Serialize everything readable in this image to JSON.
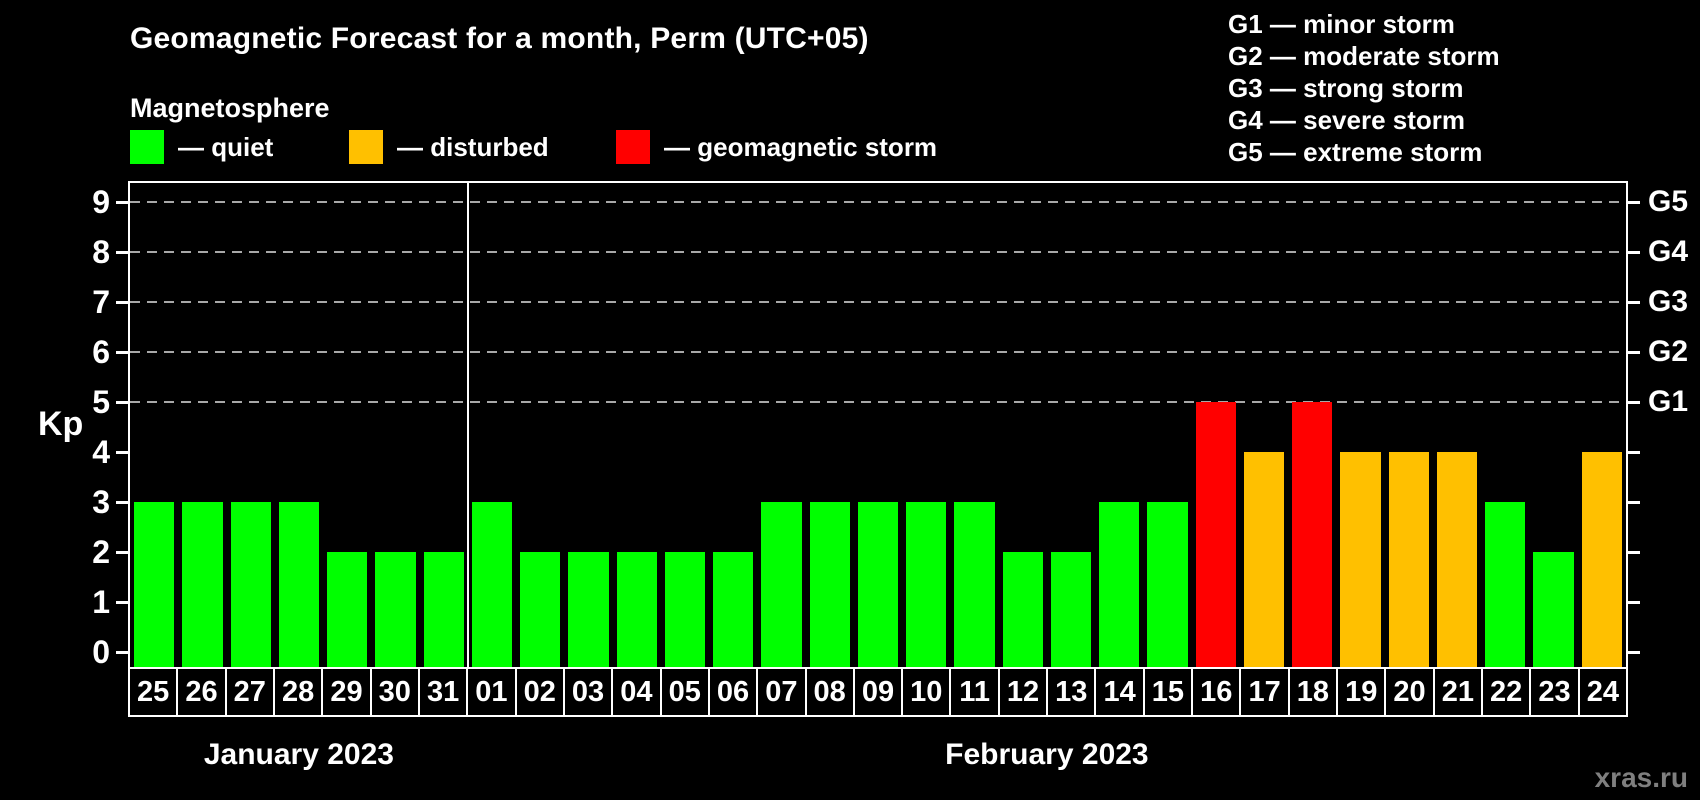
{
  "title": "Geomagnetic Forecast for a month, Perm (UTC+05)",
  "subtitle": "Magnetosphere",
  "legend": {
    "items": [
      {
        "name": "quiet",
        "label": "— quiet",
        "color": "#00ff00",
        "x": 130
      },
      {
        "name": "disturbed",
        "label": "— disturbed",
        "color": "#ffc000",
        "x": 349
      },
      {
        "name": "storm",
        "label": "— geomagnetic storm",
        "color": "#ff0000",
        "x": 616
      }
    ]
  },
  "g_scale_legend": [
    "G1 — minor storm",
    "G2 — moderate storm",
    "G3 — strong storm",
    "G4 — severe storm",
    "G5 — extreme storm"
  ],
  "watermark": "xras.ru",
  "chart_data": {
    "type": "bar",
    "title": "Geomagnetic Forecast for a month, Perm (UTC+05)",
    "ylabel": "Kp",
    "ylim": [
      0,
      9
    ],
    "yticks": [
      0,
      1,
      2,
      3,
      4,
      5,
      6,
      7,
      8,
      9
    ],
    "grid_kp_levels": [
      5,
      6,
      7,
      8,
      9
    ],
    "right_axis_labels": [
      {
        "label": "G1",
        "kp": 5
      },
      {
        "label": "G2",
        "kp": 6
      },
      {
        "label": "G3",
        "kp": 7
      },
      {
        "label": "G4",
        "kp": 8
      },
      {
        "label": "G5",
        "kp": 9
      }
    ],
    "categories": [
      "25",
      "26",
      "27",
      "28",
      "29",
      "30",
      "31",
      "01",
      "02",
      "03",
      "04",
      "05",
      "06",
      "07",
      "08",
      "09",
      "10",
      "11",
      "12",
      "13",
      "14",
      "15",
      "16",
      "17",
      "18",
      "19",
      "20",
      "21",
      "22",
      "23",
      "24"
    ],
    "values": [
      3,
      3,
      3,
      3,
      2,
      2,
      2,
      3,
      2,
      2,
      2,
      2,
      2,
      3,
      3,
      3,
      3,
      3,
      2,
      2,
      3,
      3,
      5,
      4,
      5,
      4,
      4,
      4,
      3,
      2,
      4
    ],
    "months": [
      {
        "label": "January 2023",
        "first_index": 0,
        "num_days": 7
      },
      {
        "label": "February 2023",
        "first_index": 7,
        "num_days": 24
      }
    ],
    "month_separator_after_index": 6,
    "colors": {
      "quiet": "#00ff00",
      "disturbed": "#ffc000",
      "storm": "#ff0000"
    },
    "thresholds": {
      "disturbed_min": 4,
      "storm_min": 5
    },
    "grid_color": "#a8a8a8"
  }
}
